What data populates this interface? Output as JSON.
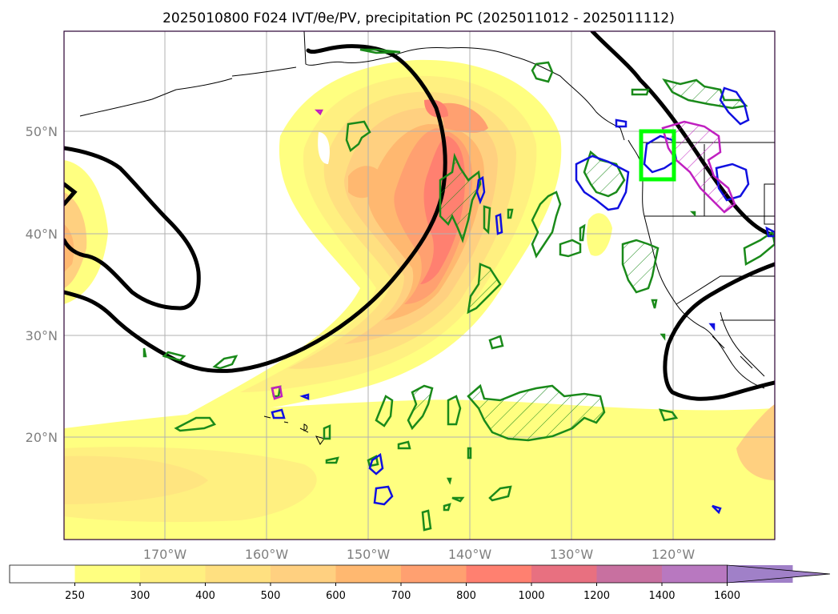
{
  "title": "2025010800 F024 IVT/θe/PV, precipitation PC (2025011012 - 2025011112)",
  "map": {
    "lon_range": [
      -180,
      -110
    ],
    "lat_range": [
      10,
      60
    ],
    "lat_ticks": [
      "20°N",
      "30°N",
      "40°N",
      "50°N"
    ],
    "lon_ticks": [
      "170°W",
      "160°W",
      "150°W",
      "140°W",
      "130°W",
      "120°W"
    ],
    "grid": true,
    "ivt_field": "IVT filled contours",
    "theta_e_contours": "black thick lines",
    "pv_contours": "green / blue / magenta outlined regions",
    "target_box_color": "#00ff00"
  },
  "colorbar": {
    "labels": [
      "250",
      "300",
      "400",
      "500",
      "600",
      "700",
      "800",
      "1000",
      "1200",
      "1400",
      "1600"
    ],
    "colors": [
      "#ffffff",
      "#ffff80",
      "#fff080",
      "#ffe080",
      "#ffd080",
      "#ffb870",
      "#ffa070",
      "#ff8070",
      "#e87080",
      "#c870a0",
      "#b878c0",
      "#a080c8"
    ],
    "extend": "max"
  }
}
